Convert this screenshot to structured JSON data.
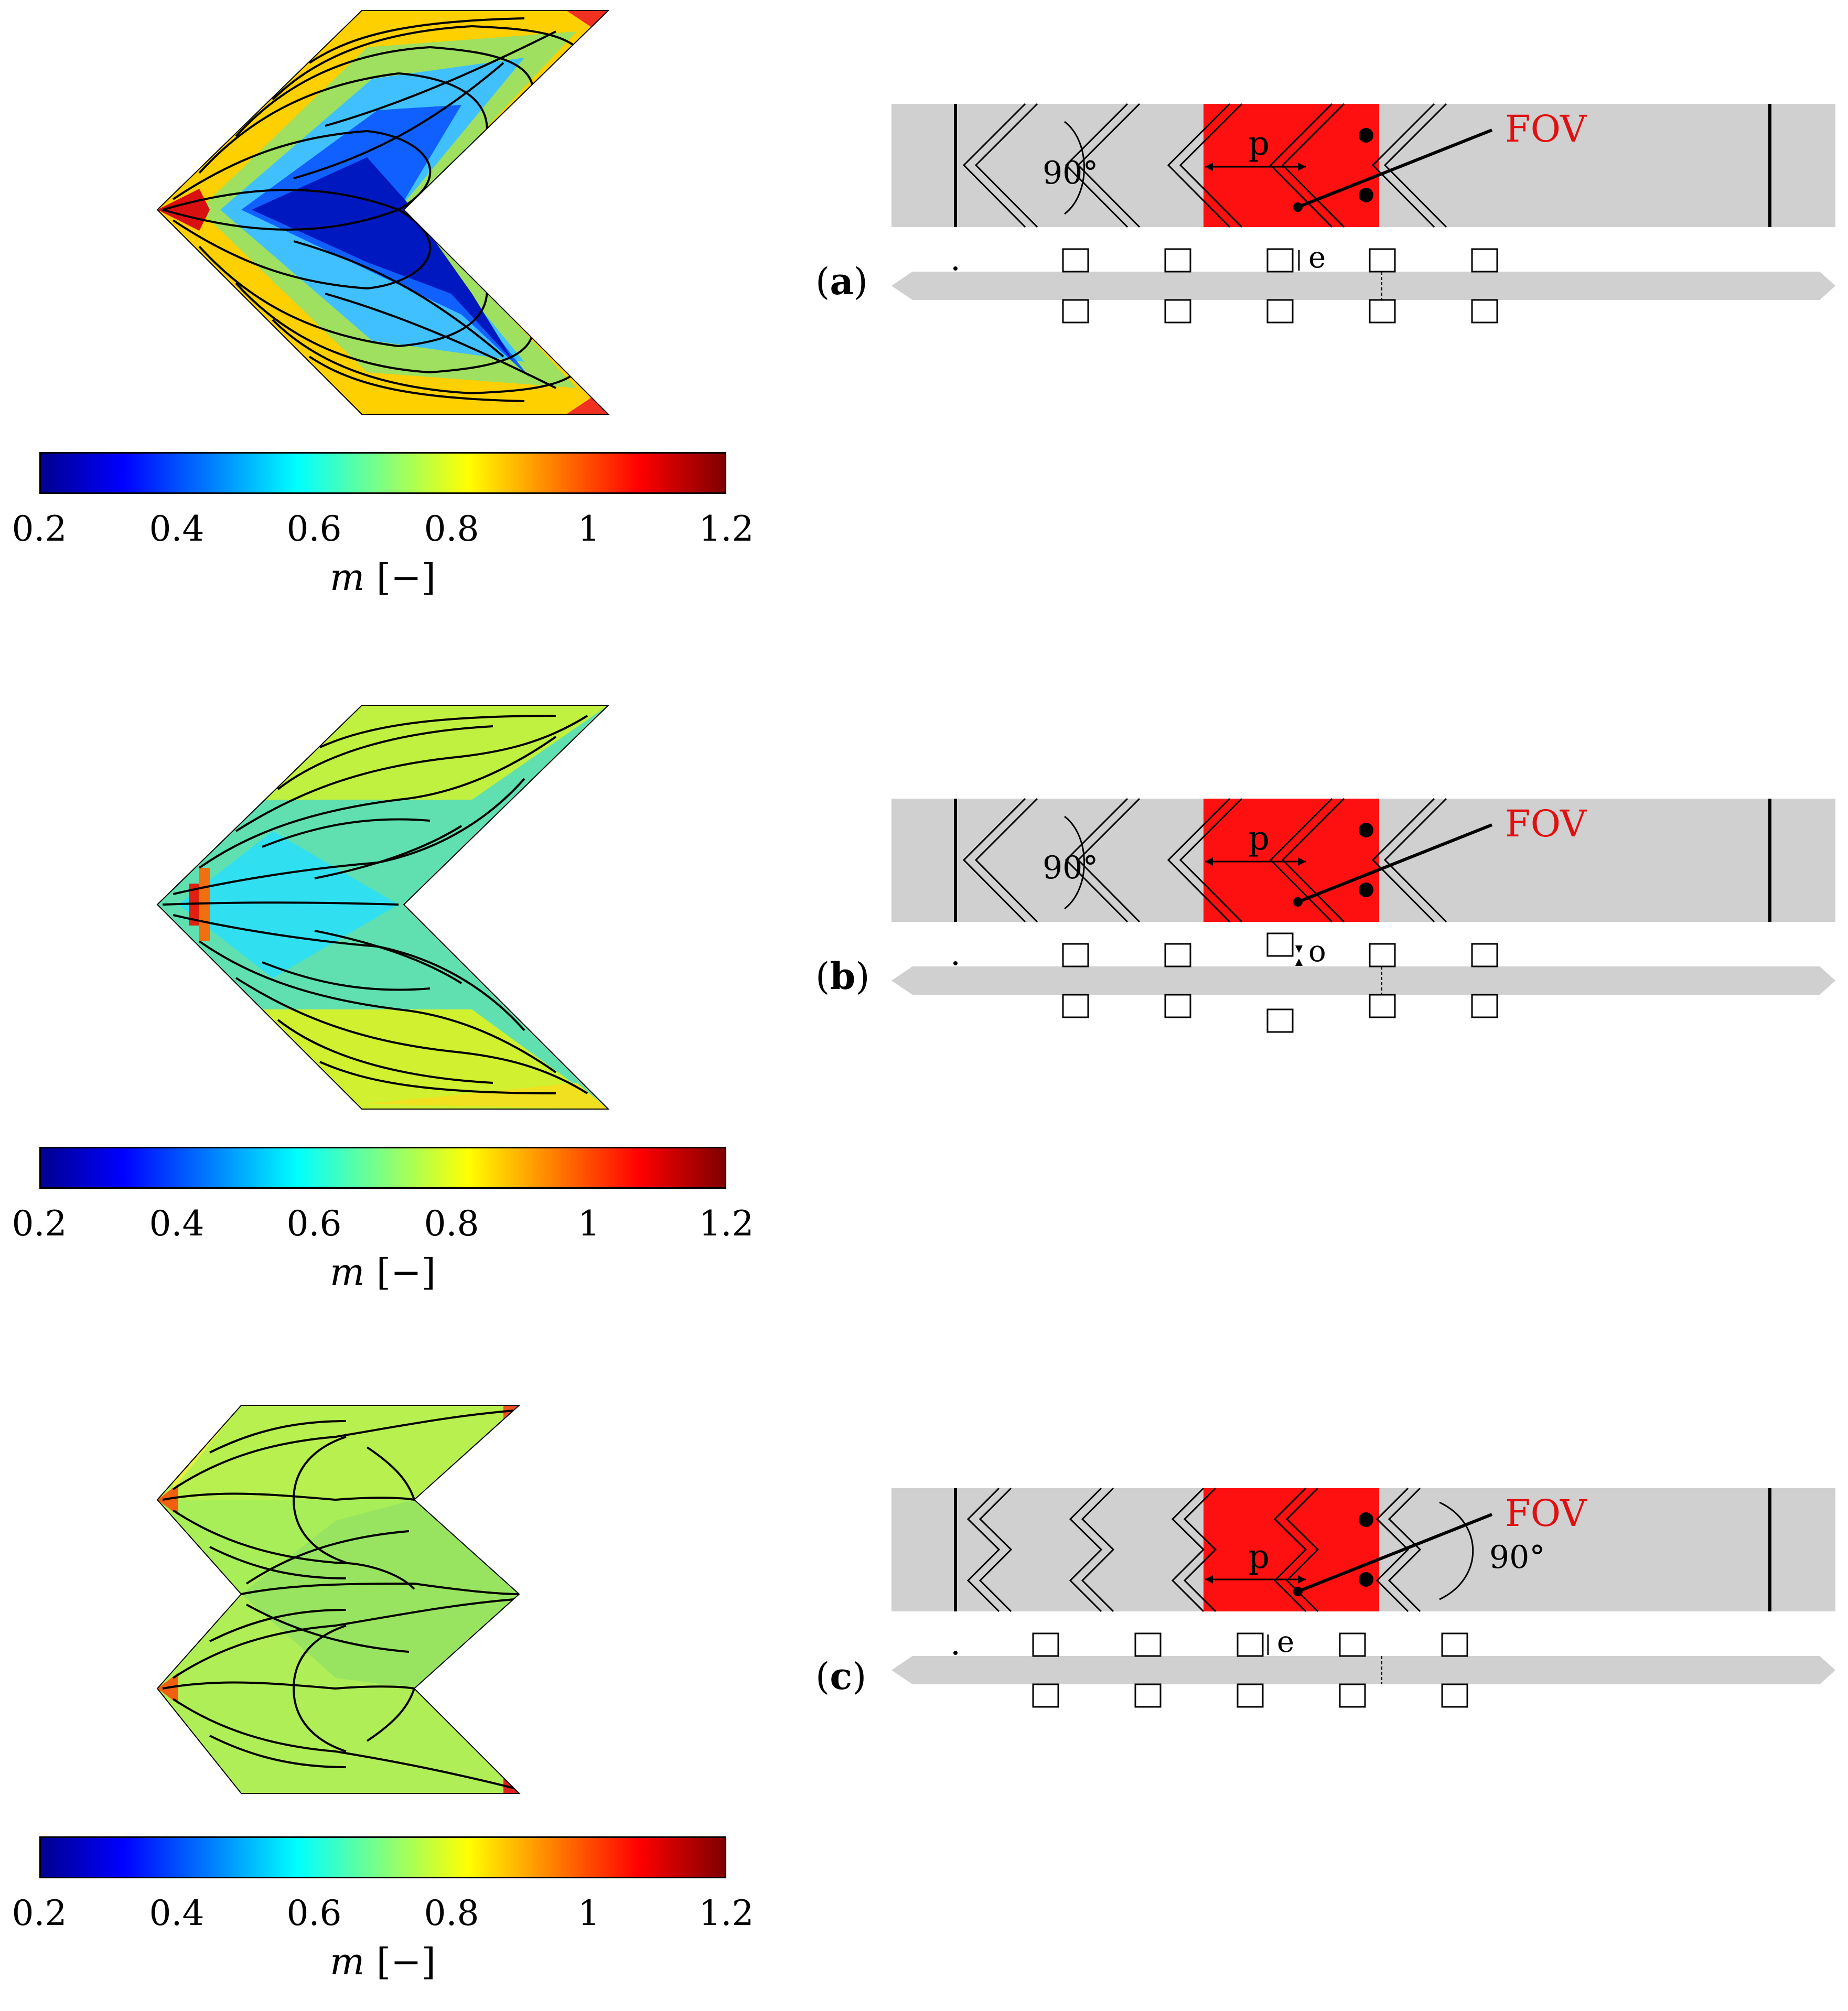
{
  "colorbar": {
    "ticks": [
      "0.2",
      "0.4",
      "0.6",
      "0.8",
      "1",
      "1.2"
    ],
    "variable": "m",
    "unit": "[−]"
  },
  "panels": [
    {
      "id": "a",
      "label_letter": "a",
      "rib_angle": "90°",
      "pitch": "p",
      "fov": "FOV",
      "gap_label": "e",
      "field_level": "low-mid",
      "accent": "#ff1010"
    },
    {
      "id": "b",
      "label_letter": "b",
      "rib_angle": "90°",
      "pitch": "p",
      "fov": "FOV",
      "gap_label": "o",
      "field_level": "mid",
      "accent": "#ff1010"
    },
    {
      "id": "c",
      "label_letter": "c",
      "rib_angle": "90°",
      "pitch": "p",
      "fov": "FOV",
      "gap_label": "e",
      "field_level": "high",
      "accent": "#ff1010"
    }
  ],
  "colors": {
    "channel": "#d0d0d0",
    "fov_box": "#ff1010",
    "fov_text": "#e01010"
  }
}
